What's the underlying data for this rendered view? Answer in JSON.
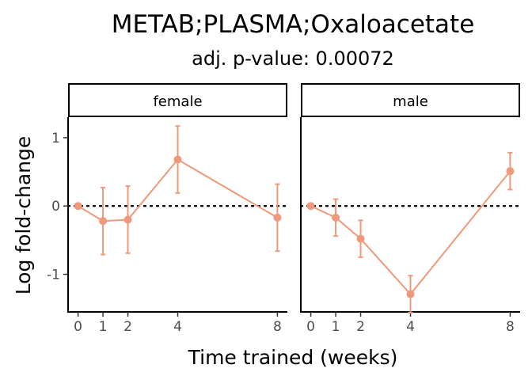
{
  "chart_data": {
    "type": "line",
    "title": "METAB;PLASMA;Oxaloacetate",
    "subtitle": "adj. p-value: 0.00072",
    "xlabel": "Time trained (weeks)",
    "ylabel": "Log fold-change",
    "x_ticks": [
      0,
      1,
      2,
      4,
      8
    ],
    "y_ticks": [
      -1,
      0,
      1
    ],
    "ylim": [
      -1.55,
      1.3
    ],
    "xlim": [
      -0.4,
      8.4
    ],
    "grid": false,
    "reference_line": 0,
    "line_color": "#F0987A",
    "panels": [
      {
        "label": "female",
        "points": [
          {
            "x": 0,
            "y": 0.0,
            "lo": 0.0,
            "hi": 0.0
          },
          {
            "x": 1,
            "y": -0.22,
            "lo": -0.71,
            "hi": 0.27
          },
          {
            "x": 2,
            "y": -0.2,
            "lo": -0.69,
            "hi": 0.29
          },
          {
            "x": 4,
            "y": 0.68,
            "lo": 0.19,
            "hi": 1.17
          },
          {
            "x": 8,
            "y": -0.17,
            "lo": -0.66,
            "hi": 0.32
          }
        ]
      },
      {
        "label": "male",
        "points": [
          {
            "x": 0,
            "y": 0.0,
            "lo": 0.0,
            "hi": 0.0
          },
          {
            "x": 1,
            "y": -0.17,
            "lo": -0.44,
            "hi": 0.1
          },
          {
            "x": 2,
            "y": -0.48,
            "lo": -0.75,
            "hi": -0.21
          },
          {
            "x": 4,
            "y": -1.29,
            "lo": -1.56,
            "hi": -1.02
          },
          {
            "x": 8,
            "y": 0.51,
            "lo": 0.24,
            "hi": 0.78
          }
        ]
      }
    ]
  }
}
